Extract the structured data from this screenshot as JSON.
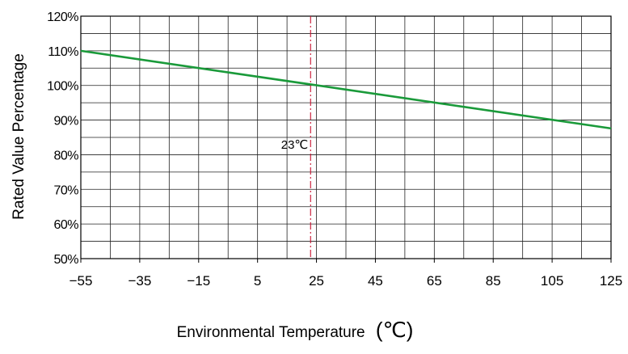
{
  "chart_data": {
    "type": "line",
    "title": "",
    "xlabel": "Environmental Temperature",
    "xlabel_unit": "(℃)",
    "ylabel": "Rated Value Percentage",
    "xlim": [
      -55,
      125
    ],
    "ylim": [
      50,
      120
    ],
    "x_ticks": [
      -55,
      -35,
      -15,
      5,
      25,
      45,
      65,
      85,
      105,
      125
    ],
    "x_tick_labels": [
      "−55",
      "−35",
      "−15",
      "5",
      "25",
      "45",
      "65",
      "85",
      "105",
      "125"
    ],
    "y_ticks": [
      50,
      60,
      70,
      80,
      90,
      100,
      110,
      120
    ],
    "y_tick_labels": [
      "50%",
      "60%",
      "70%",
      "80%",
      "90%",
      "100%",
      "110%",
      "120%"
    ],
    "grid": true,
    "series": [
      {
        "color": "#1a9a3a",
        "points": [
          {
            "x": -55,
            "y": 110
          },
          {
            "x": 125,
            "y": 87.6
          }
        ]
      }
    ],
    "reference_line": {
      "x": 23,
      "label": "23℃",
      "color": "#c8102e",
      "style": "dash-dot"
    }
  }
}
